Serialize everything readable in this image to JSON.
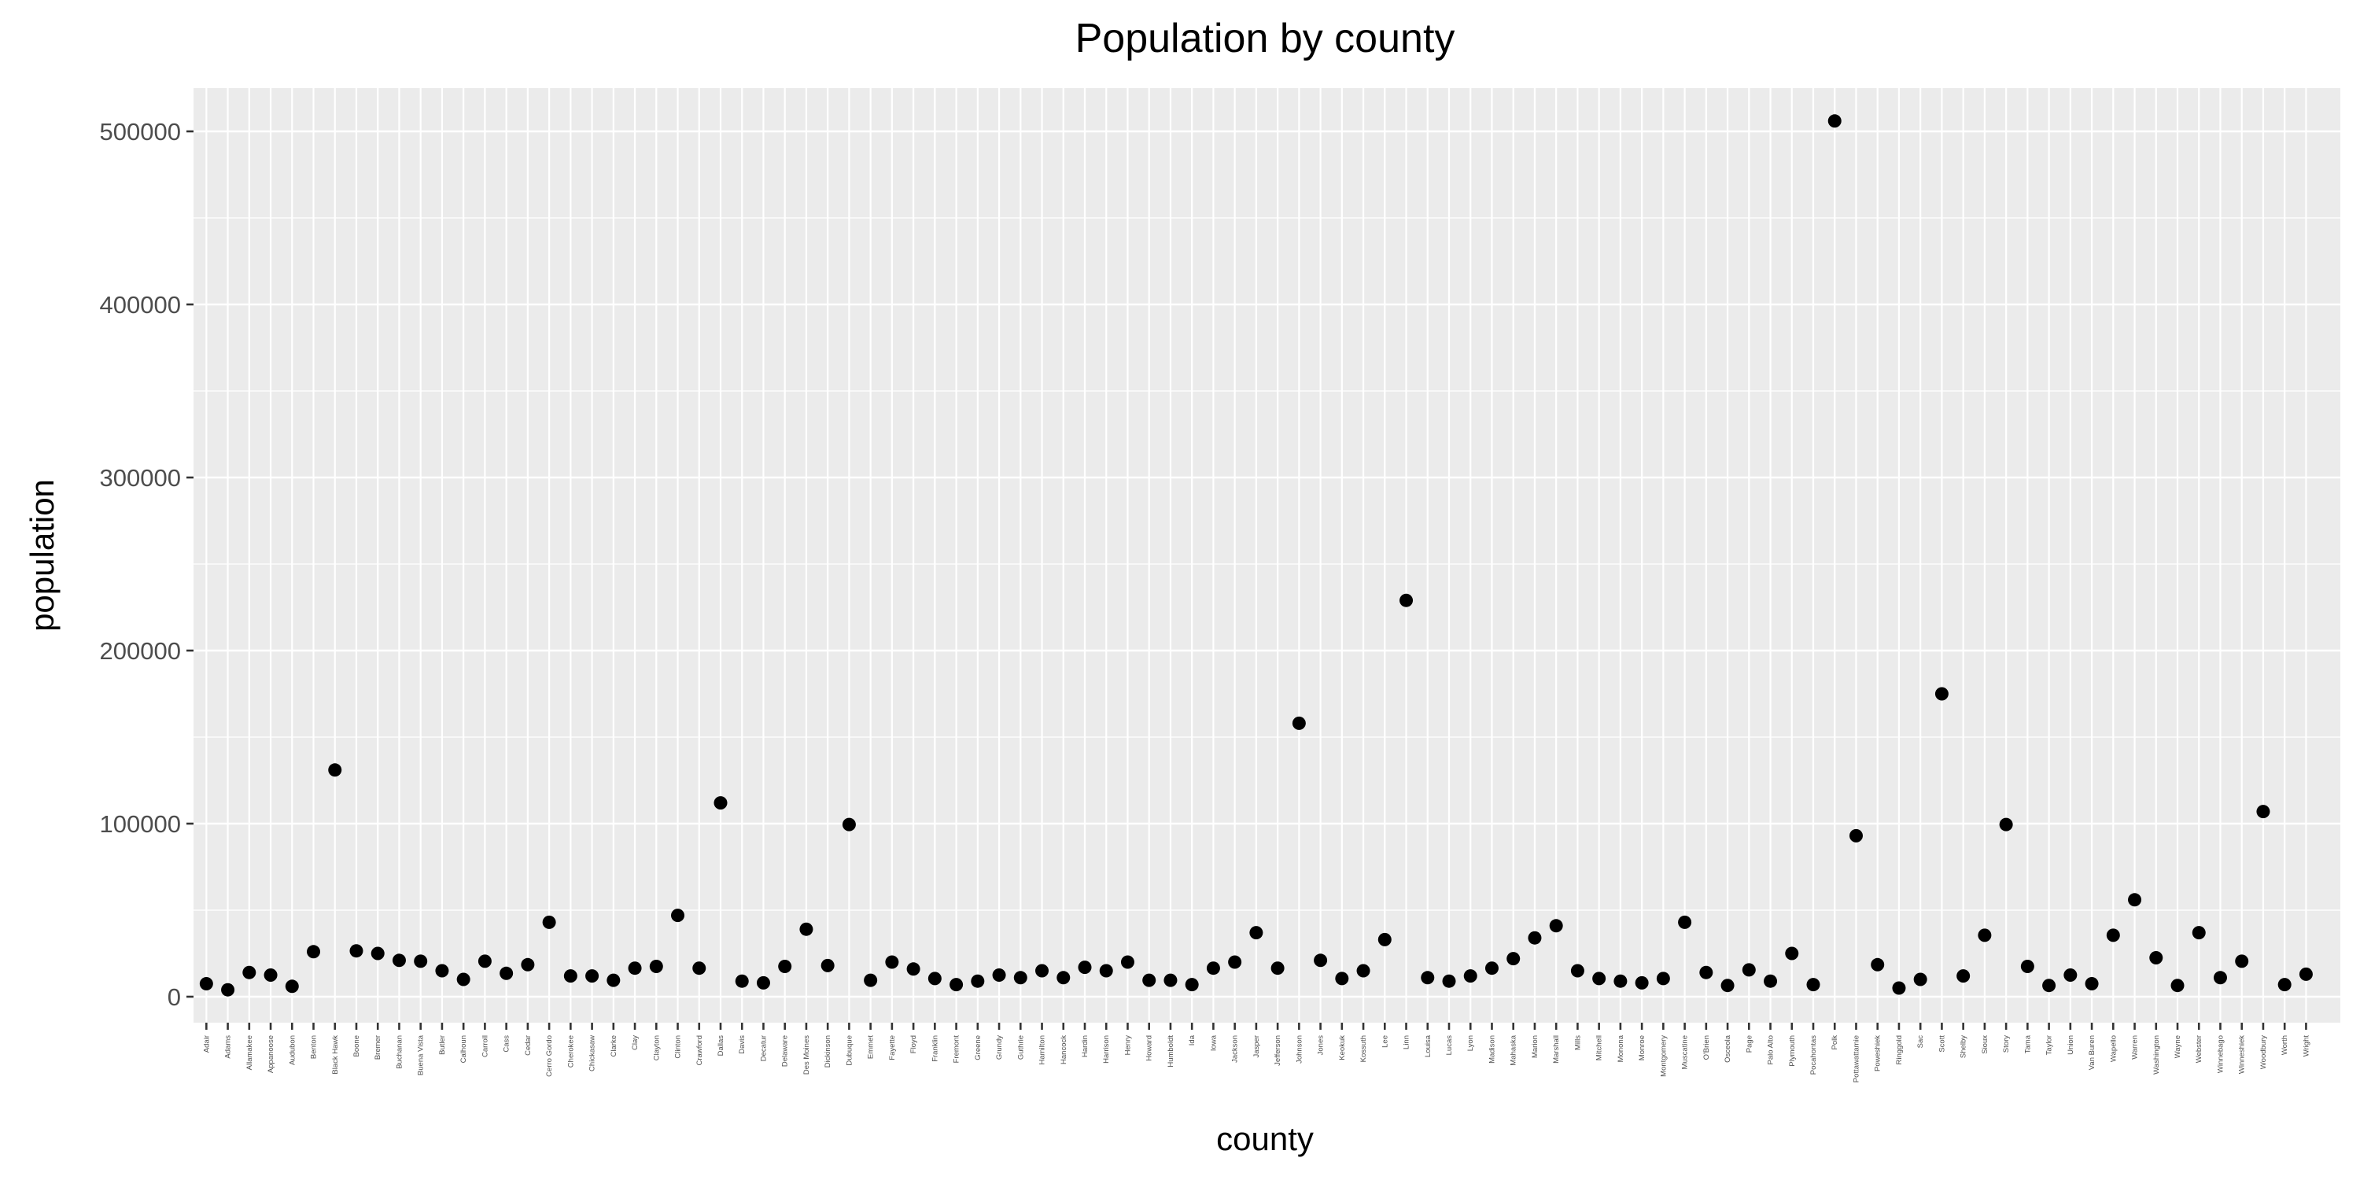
{
  "chart_data": {
    "type": "scatter",
    "title": "Population by county",
    "xlabel": "county",
    "ylabel": "population",
    "ylim": [
      -15000,
      525000
    ],
    "yticks": [
      0,
      100000,
      200000,
      300000,
      400000,
      500000
    ],
    "ytick_labels": [
      "0",
      "100000",
      "200000",
      "300000",
      "400000",
      "500000"
    ],
    "grid": true,
    "legend": "none",
    "panel_color": "#ebebeb",
    "grid_color": "#ffffff",
    "point_color": "#000000",
    "categories": [
      "Adair",
      "Adams",
      "Allamakee",
      "Appanoose",
      "Audubon",
      "Benton",
      "Black Hawk",
      "Boone",
      "Bremer",
      "Buchanan",
      "Buena Vista",
      "Butler",
      "Calhoun",
      "Carroll",
      "Cass",
      "Cedar",
      "Cerro Gordo",
      "Cherokee",
      "Chickasaw",
      "Clarke",
      "Clay",
      "Clayton",
      "Clinton",
      "Crawford",
      "Dallas",
      "Davis",
      "Decatur",
      "Delaware",
      "Des Moines",
      "Dickinson",
      "Dubuque",
      "Emmet",
      "Fayette",
      "Floyd",
      "Franklin",
      "Fremont",
      "Greene",
      "Grundy",
      "Guthrie",
      "Hamilton",
      "Hancock",
      "Hardin",
      "Harrison",
      "Henry",
      "Howard",
      "Humboldt",
      "Ida",
      "Iowa",
      "Jackson",
      "Jasper",
      "Jefferson",
      "Johnson",
      "Jones",
      "Keokuk",
      "Kossuth",
      "Lee",
      "Linn",
      "Louisa",
      "Lucas",
      "Lyon",
      "Madison",
      "Mahaska",
      "Marion",
      "Marshall",
      "Mills",
      "Mitchell",
      "Monona",
      "Monroe",
      "Montgomery",
      "Muscatine",
      "O'Brien",
      "Osceola",
      "Page",
      "Palo Alto",
      "Plymouth",
      "Pocahontas",
      "Polk",
      "Pottawattamie",
      "Poweshiek",
      "Ringgold",
      "Sac",
      "Scott",
      "Shelby",
      "Sioux",
      "Story",
      "Tama",
      "Taylor",
      "Union",
      "Van Buren",
      "Wapello",
      "Warren",
      "Washington",
      "Wayne",
      "Webster",
      "Winnebago",
      "Winneshiek",
      "Woodbury",
      "Worth",
      "Wright"
    ],
    "values": [
      7500,
      4000,
      14000,
      12500,
      6000,
      26000,
      131000,
      26500,
      25000,
      21000,
      20500,
      15000,
      10000,
      20500,
      13500,
      18500,
      43000,
      12000,
      12000,
      9500,
      16500,
      17500,
      47000,
      16500,
      112000,
      9000,
      8000,
      17500,
      39000,
      18000,
      99500,
      9500,
      20000,
      16000,
      10500,
      7000,
      9000,
      12500,
      11000,
      15000,
      11000,
      17000,
      15000,
      20000,
      9500,
      9500,
      7000,
      16500,
      20000,
      37000,
      16500,
      158000,
      21000,
      10500,
      15000,
      33000,
      229000,
      11000,
      9000,
      12000,
      16500,
      22000,
      34000,
      41000,
      15000,
      10500,
      9000,
      8000,
      10500,
      43000,
      14000,
      6500,
      15500,
      9000,
      25000,
      7000,
      506000,
      93000,
      18500,
      5000,
      10000,
      175000,
      12000,
      35500,
      99500,
      17500,
      6500,
      12500,
      7500,
      35500,
      56000,
      22500,
      6500,
      37000,
      11000,
      20500,
      107000,
      7000,
      13000
    ]
  }
}
